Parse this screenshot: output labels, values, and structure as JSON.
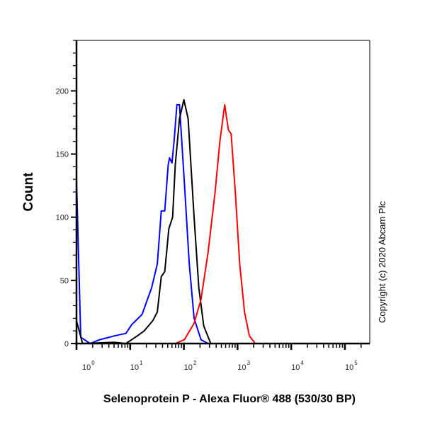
{
  "chart_data": {
    "type": "line",
    "title": "",
    "xlabel": "Selenoprotein P - Alexa Fluor® 488 (530/30 BP)",
    "ylabel": "Count",
    "annotation": "Copyright (c) 2020 Abcam Plc",
    "x_scale": "log",
    "xlim": [
      1,
      290000
    ],
    "ylim": [
      0,
      240
    ],
    "x_tick_labels": [
      {
        "base": "10",
        "exp": "0",
        "value": 1
      },
      {
        "base": "10",
        "exp": "1",
        "value": 10
      },
      {
        "base": "10",
        "exp": "2",
        "value": 100
      },
      {
        "base": "10",
        "exp": "3",
        "value": 1000
      },
      {
        "base": "10",
        "exp": "4",
        "value": 10000
      },
      {
        "base": "10",
        "exp": "5",
        "value": 100000
      }
    ],
    "y_ticks": [
      "0",
      "50",
      "100",
      "150",
      "200"
    ],
    "grid": false,
    "legend": "none",
    "series": [
      {
        "color": "#0000ff",
        "points": [
          [
            1.0,
            130
          ],
          [
            1.2,
            5
          ],
          [
            1.8,
            0
          ],
          [
            2.7,
            3
          ],
          [
            5.0,
            6
          ],
          [
            8.3,
            8
          ],
          [
            10.7,
            15
          ],
          [
            16.6,
            23
          ],
          [
            25,
            44
          ],
          [
            32,
            63
          ],
          [
            38,
            105
          ],
          [
            44,
            105
          ],
          [
            51,
            141
          ],
          [
            54,
            147
          ],
          [
            60,
            143
          ],
          [
            66,
            161
          ],
          [
            74,
            189
          ],
          [
            83,
            189
          ],
          [
            102,
            128
          ],
          [
            126,
            63
          ],
          [
            155,
            20
          ],
          [
            209,
            3
          ],
          [
            282,
            0
          ],
          [
            290000,
            0
          ]
        ]
      },
      {
        "color": "#000000",
        "points": [
          [
            1.0,
            18
          ],
          [
            1.3,
            0
          ],
          [
            5,
            1
          ],
          [
            8.3,
            0
          ],
          [
            13.5,
            6
          ],
          [
            18.2,
            10
          ],
          [
            26.3,
            18
          ],
          [
            32,
            25
          ],
          [
            38,
            53
          ],
          [
            44,
            57
          ],
          [
            52.5,
            91
          ],
          [
            61.7,
            100
          ],
          [
            69,
            141
          ],
          [
            83,
            178
          ],
          [
            100,
            193
          ],
          [
            120,
            178
          ],
          [
            155,
            100
          ],
          [
            190,
            44
          ],
          [
            234,
            14
          ],
          [
            316,
            0
          ],
          [
            290000,
            0
          ]
        ]
      },
      {
        "color": "#ff0000",
        "points": [
          [
            1.0,
            0
          ],
          [
            69,
            0
          ],
          [
            102,
            3
          ],
          [
            155,
            16
          ],
          [
            209,
            35
          ],
          [
            282,
            72
          ],
          [
            380,
            119
          ],
          [
            468,
            160
          ],
          [
            575,
            189
          ],
          [
            676,
            169
          ],
          [
            759,
            166
          ],
          [
            912,
            119
          ],
          [
            1096,
            63
          ],
          [
            1349,
            25
          ],
          [
            1660,
            6
          ],
          [
            2138,
            0
          ],
          [
            290000,
            0
          ]
        ]
      }
    ]
  }
}
